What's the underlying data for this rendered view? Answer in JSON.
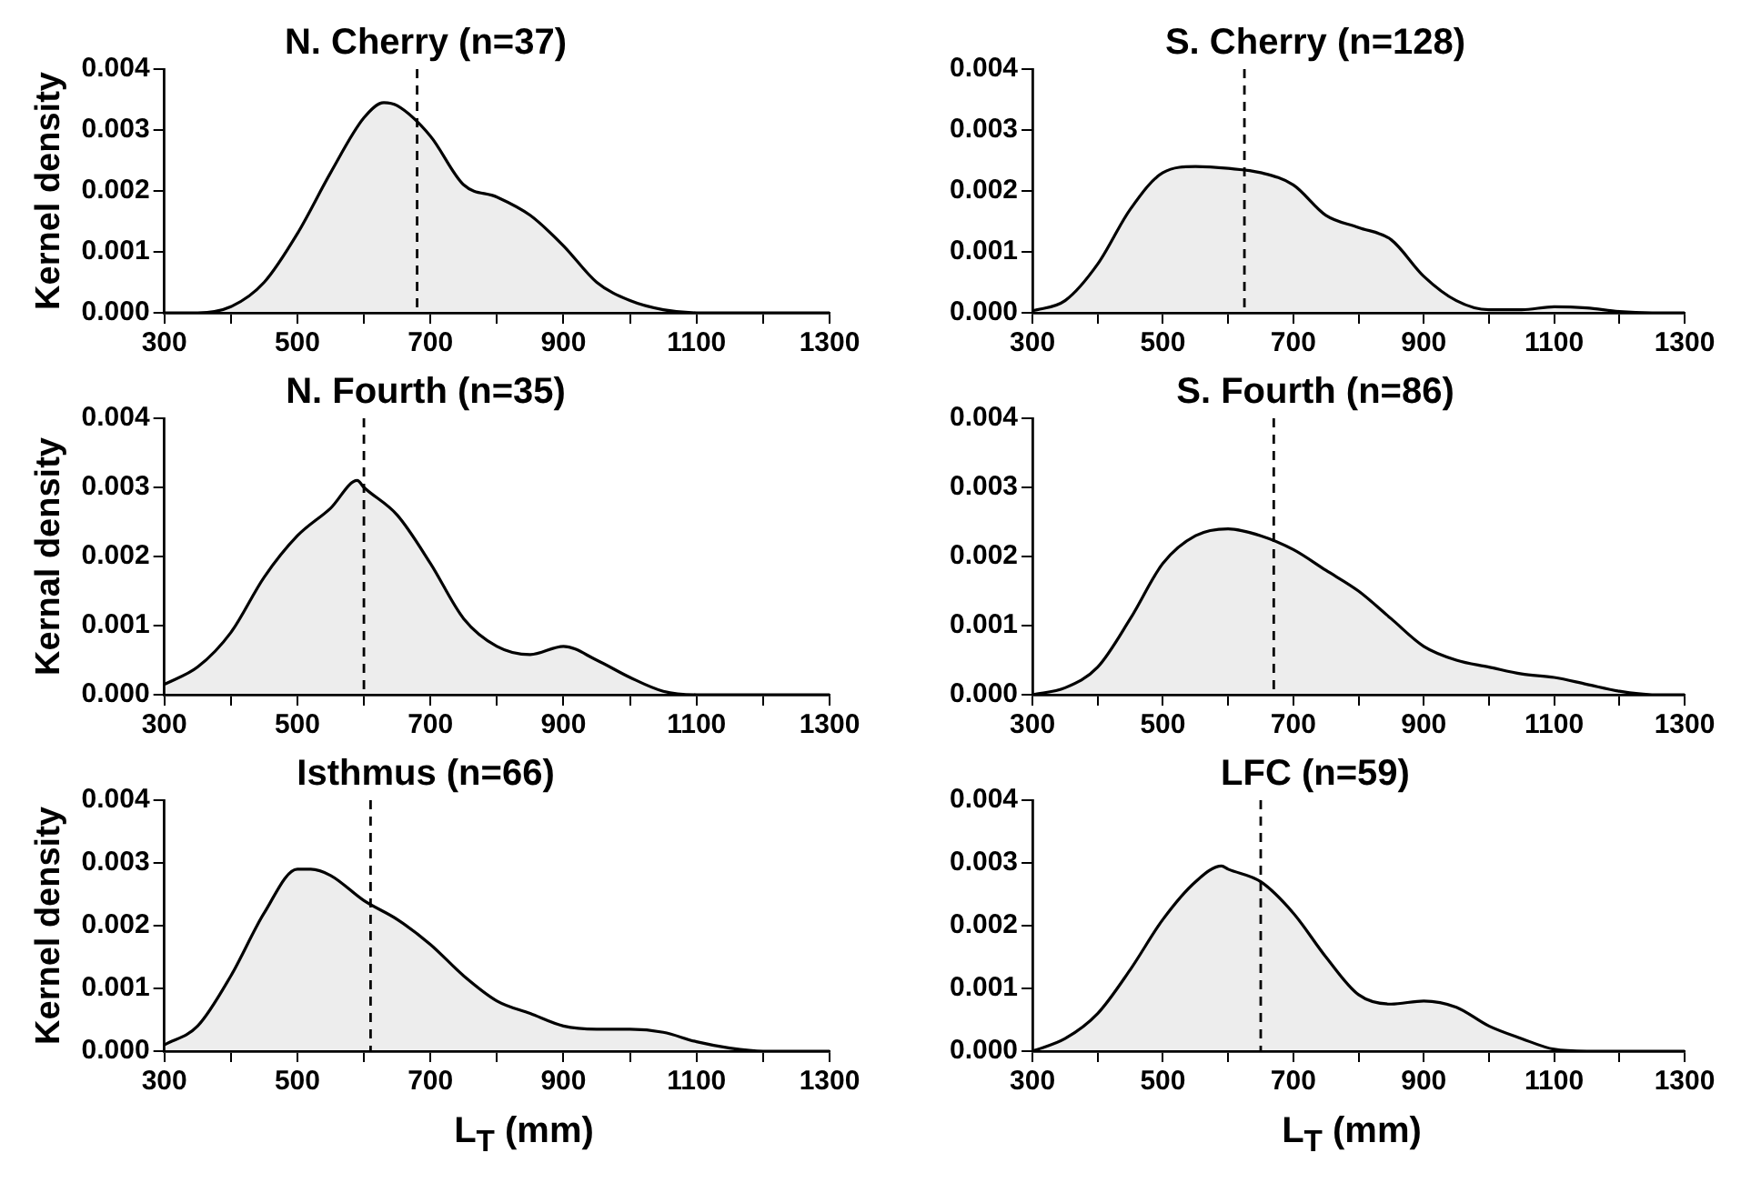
{
  "chart_data": [
    {
      "type": "area",
      "title": "N. Cherry (n=37)",
      "ylabel": "Kernel density",
      "x": [
        300,
        350,
        400,
        450,
        500,
        550,
        600,
        630,
        650,
        700,
        750,
        800,
        850,
        900,
        950,
        1000,
        1050,
        1100,
        1150,
        1200,
        1250,
        1300
      ],
      "series": [
        {
          "color": "#000000",
          "values": [
            0,
            0,
            0.0001,
            0.0005,
            0.0013,
            0.0023,
            0.0032,
            0.00345,
            0.0034,
            0.0029,
            0.0021,
            0.0019,
            0.0016,
            0.0011,
            0.0005,
            0.0002,
            5e-05,
            0,
            0,
            0,
            0,
            0
          ]
        }
      ],
      "xlim": [
        300,
        1300
      ],
      "xticks": [
        300,
        {
          "value": 400,
          "label": null
        },
        500,
        {
          "value": 600,
          "label": null
        },
        700,
        {
          "value": 800,
          "label": null
        },
        900,
        {
          "value": 1000,
          "label": null
        },
        1100,
        {
          "value": 1200,
          "label": null
        },
        1300
      ],
      "ylim": [
        0,
        0.004
      ],
      "yticks": [
        {
          "value": 0,
          "label": "0.000"
        },
        {
          "value": 0.001,
          "label": "0.001"
        },
        {
          "value": 0.002,
          "label": "0.002"
        },
        {
          "value": 0.003,
          "label": "0.003"
        },
        {
          "value": 0.004,
          "label": "0.004"
        }
      ],
      "ref_lines": [
        {
          "axis": "x",
          "value": 680,
          "line_style": "dashed"
        }
      ],
      "grid": false,
      "legend": false
    },
    {
      "type": "area",
      "title": "S. Cherry (n=128)",
      "x": [
        300,
        350,
        400,
        450,
        500,
        550,
        600,
        650,
        700,
        750,
        800,
        850,
        900,
        950,
        1000,
        1050,
        1100,
        1150,
        1200,
        1250,
        1300
      ],
      "series": [
        {
          "color": "#000000",
          "values": [
            3e-05,
            0.0002,
            0.0008,
            0.0017,
            0.0023,
            0.0024,
            0.00237,
            0.0023,
            0.0021,
            0.0016,
            0.0014,
            0.0012,
            0.0006,
            0.0002,
            5e-05,
            5e-05,
            0.0001,
            8e-05,
            2e-05,
            0,
            0
          ]
        }
      ],
      "xlim": [
        300,
        1300
      ],
      "xticks": [
        300,
        {
          "value": 400,
          "label": null
        },
        500,
        {
          "value": 600,
          "label": null
        },
        700,
        {
          "value": 800,
          "label": null
        },
        900,
        {
          "value": 1000,
          "label": null
        },
        1100,
        {
          "value": 1200,
          "label": null
        },
        1300
      ],
      "ylim": [
        0,
        0.004
      ],
      "yticks": [
        {
          "value": 0,
          "label": "0.000"
        },
        {
          "value": 0.001,
          "label": "0.001"
        },
        {
          "value": 0.002,
          "label": "0.002"
        },
        {
          "value": 0.003,
          "label": "0.003"
        },
        {
          "value": 0.004,
          "label": "0.004"
        }
      ],
      "ref_lines": [
        {
          "axis": "x",
          "value": 625,
          "line_style": "dashed"
        }
      ],
      "grid": false,
      "legend": false
    },
    {
      "type": "area",
      "title": "N. Fourth (n=35)",
      "ylabel": "Kernal density",
      "x": [
        300,
        350,
        400,
        450,
        500,
        550,
        590,
        600,
        650,
        700,
        750,
        800,
        850,
        900,
        950,
        1000,
        1050,
        1100,
        1150,
        1200,
        1250,
        1300
      ],
      "series": [
        {
          "color": "#000000",
          "values": [
            0.00015,
            0.0004,
            0.0009,
            0.0017,
            0.0023,
            0.0027,
            0.0031,
            0.003,
            0.0026,
            0.0019,
            0.0011,
            0.0007,
            0.00058,
            0.0007,
            0.0005,
            0.00025,
            5e-05,
            0,
            0,
            0,
            0,
            0
          ]
        }
      ],
      "xlim": [
        300,
        1300
      ],
      "xticks": [
        300,
        {
          "value": 400,
          "label": null
        },
        500,
        {
          "value": 600,
          "label": null
        },
        700,
        {
          "value": 800,
          "label": null
        },
        900,
        {
          "value": 1000,
          "label": null
        },
        1100,
        {
          "value": 1200,
          "label": null
        },
        1300
      ],
      "ylim": [
        0,
        0.004
      ],
      "yticks": [
        {
          "value": 0,
          "label": "0.000"
        },
        {
          "value": 0.001,
          "label": "0.001"
        },
        {
          "value": 0.002,
          "label": "0.002"
        },
        {
          "value": 0.003,
          "label": "0.003"
        },
        {
          "value": 0.004,
          "label": "0.004"
        }
      ],
      "ref_lines": [
        {
          "axis": "x",
          "value": 600,
          "line_style": "dashed"
        }
      ],
      "grid": false,
      "legend": false
    },
    {
      "type": "area",
      "title": "S. Fourth (n=86)",
      "x": [
        300,
        350,
        400,
        450,
        500,
        550,
        600,
        650,
        700,
        750,
        800,
        850,
        900,
        950,
        1000,
        1050,
        1100,
        1150,
        1200,
        1250,
        1300
      ],
      "series": [
        {
          "color": "#000000",
          "values": [
            0,
            0.0001,
            0.0004,
            0.0011,
            0.0019,
            0.0023,
            0.0024,
            0.0023,
            0.0021,
            0.0018,
            0.0015,
            0.0011,
            0.0007,
            0.0005,
            0.0004,
            0.0003,
            0.00025,
            0.00015,
            5e-05,
            0,
            0
          ]
        }
      ],
      "xlim": [
        300,
        1300
      ],
      "xticks": [
        300,
        {
          "value": 400,
          "label": null
        },
        500,
        {
          "value": 600,
          "label": null
        },
        700,
        {
          "value": 800,
          "label": null
        },
        900,
        {
          "value": 1000,
          "label": null
        },
        1100,
        {
          "value": 1200,
          "label": null
        },
        1300
      ],
      "ylim": [
        0,
        0.004
      ],
      "yticks": [
        {
          "value": 0,
          "label": "0.000"
        },
        {
          "value": 0.001,
          "label": "0.001"
        },
        {
          "value": 0.002,
          "label": "0.002"
        },
        {
          "value": 0.003,
          "label": "0.003"
        },
        {
          "value": 0.004,
          "label": "0.004"
        }
      ],
      "ref_lines": [
        {
          "axis": "x",
          "value": 670,
          "line_style": "dashed"
        }
      ],
      "grid": false,
      "legend": false
    },
    {
      "type": "area",
      "title": "Isthmus (n=66)",
      "ylabel": "Kernel density",
      "xlabel": "L$_{T}$ (mm)",
      "x": [
        300,
        350,
        400,
        450,
        500,
        520,
        550,
        600,
        650,
        700,
        750,
        800,
        850,
        900,
        950,
        1000,
        1050,
        1100,
        1150,
        1200,
        1250,
        1300
      ],
      "series": [
        {
          "color": "#000000",
          "values": [
            0.0001,
            0.0004,
            0.0012,
            0.0022,
            0.0029,
            0.0029,
            0.0028,
            0.0024,
            0.0021,
            0.0017,
            0.0012,
            0.0008,
            0.0006,
            0.0004,
            0.00035,
            0.00035,
            0.0003,
            0.00015,
            5e-05,
            0,
            0,
            0
          ]
        }
      ],
      "xlim": [
        300,
        1300
      ],
      "xticks": [
        300,
        {
          "value": 400,
          "label": null
        },
        500,
        {
          "value": 600,
          "label": null
        },
        700,
        {
          "value": 800,
          "label": null
        },
        900,
        {
          "value": 1000,
          "label": null
        },
        1100,
        {
          "value": 1200,
          "label": null
        },
        1300
      ],
      "ylim": [
        0,
        0.004
      ],
      "yticks": [
        {
          "value": 0,
          "label": "0.000"
        },
        {
          "value": 0.001,
          "label": "0.001"
        },
        {
          "value": 0.002,
          "label": "0.002"
        },
        {
          "value": 0.003,
          "label": "0.003"
        },
        {
          "value": 0.004,
          "label": "0.004"
        }
      ],
      "ref_lines": [
        {
          "axis": "x",
          "value": 610,
          "line_style": "dashed"
        }
      ],
      "grid": false,
      "legend": false
    },
    {
      "type": "area",
      "title": "LFC (n=59)",
      "xlabel": "L$_{T}$ (mm)",
      "x": [
        300,
        350,
        400,
        450,
        500,
        550,
        590,
        600,
        650,
        700,
        750,
        800,
        850,
        900,
        950,
        1000,
        1050,
        1100,
        1150,
        1200,
        1250,
        1300
      ],
      "series": [
        {
          "color": "#000000",
          "values": [
            0,
            0.0002,
            0.0006,
            0.0013,
            0.0021,
            0.0027,
            0.00295,
            0.0029,
            0.0027,
            0.0022,
            0.0015,
            0.0009,
            0.00075,
            0.0008,
            0.0007,
            0.0004,
            0.0002,
            3e-05,
            0,
            0,
            0,
            0
          ]
        }
      ],
      "xlim": [
        300,
        1300
      ],
      "xticks": [
        300,
        {
          "value": 400,
          "label": null
        },
        500,
        {
          "value": 600,
          "label": null
        },
        700,
        {
          "value": 800,
          "label": null
        },
        900,
        {
          "value": 1000,
          "label": null
        },
        1100,
        {
          "value": 1200,
          "label": null
        },
        1300
      ],
      "ylim": [
        0,
        0.004
      ],
      "yticks": [
        {
          "value": 0,
          "label": "0.000"
        },
        {
          "value": 0.001,
          "label": "0.001"
        },
        {
          "value": 0.002,
          "label": "0.002"
        },
        {
          "value": 0.003,
          "label": "0.003"
        },
        {
          "value": 0.004,
          "label": "0.004"
        }
      ],
      "ref_lines": [
        {
          "axis": "x",
          "value": 650,
          "line_style": "dashed"
        }
      ],
      "grid": false,
      "legend": false
    }
  ]
}
